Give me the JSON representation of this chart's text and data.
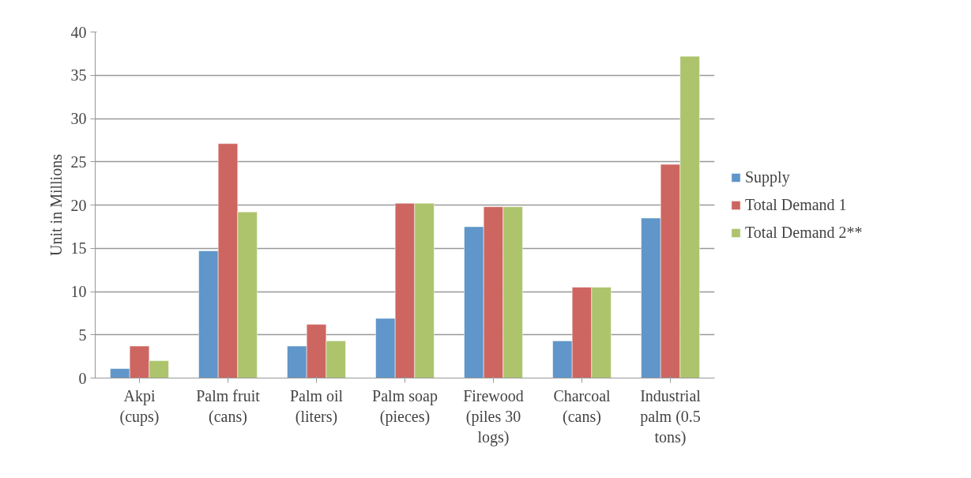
{
  "chart_data": {
    "type": "bar",
    "ylabel": "Unit in Millions",
    "categories": [
      "Akpi (cups)",
      "Palm fruit (cans)",
      "Palm oil (liters)",
      "Palm soap (pieces)",
      "Firewood (piles 30 logs)",
      "Charcoal (cans)",
      "Industrial palm (0.5 tons)"
    ],
    "series": [
      {
        "name": "Supply",
        "color": "#6096c9",
        "values": [
          1.1,
          14.7,
          3.7,
          6.9,
          17.5,
          4.3,
          18.5
        ]
      },
      {
        "name": "Total Demand 1",
        "color": "#cd6660",
        "values": [
          3.7,
          27.1,
          6.2,
          20.2,
          19.8,
          10.5,
          24.7
        ]
      },
      {
        "name": "Total Demand 2**",
        "color": "#adc46d",
        "values": [
          2.0,
          19.2,
          4.3,
          20.2,
          19.8,
          10.5,
          37.2
        ]
      }
    ],
    "ylim": [
      0,
      40
    ],
    "yticks": [
      0,
      5,
      10,
      15,
      20,
      25,
      30,
      35,
      40
    ],
    "grid": "y",
    "legend": "right"
  }
}
